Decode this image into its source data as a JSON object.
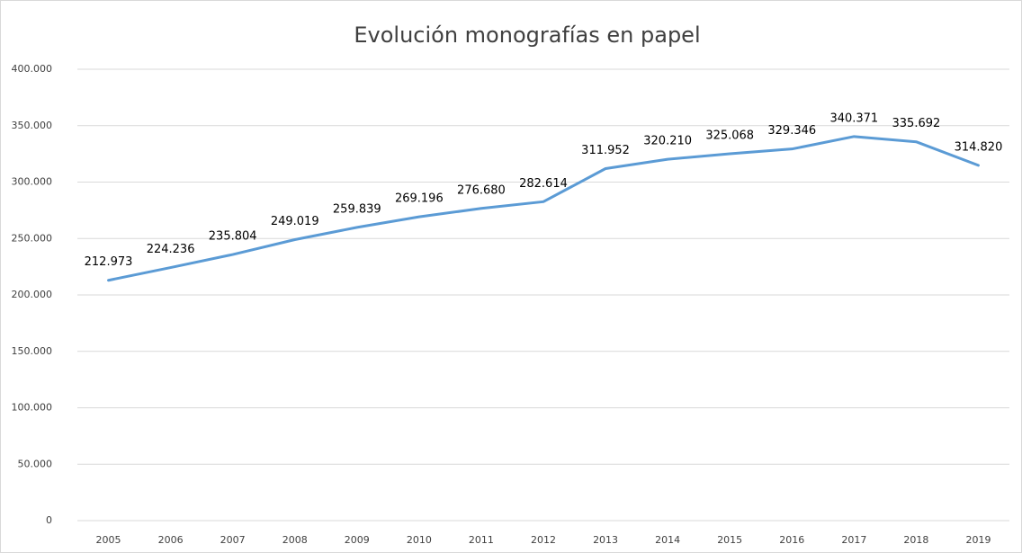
{
  "chart_data": {
    "type": "line",
    "title": "Evolución monografías en papel",
    "categories": [
      "2005",
      "2006",
      "2007",
      "2008",
      "2009",
      "2010",
      "2011",
      "2012",
      "2013",
      "2014",
      "2015",
      "2016",
      "2017",
      "2018",
      "2019"
    ],
    "series": [
      {
        "name": "Monografías en papel",
        "color": "#5b9bd5",
        "values": [
          212973,
          224236,
          235804,
          249019,
          259839,
          269196,
          276680,
          282614,
          311952,
          320210,
          325068,
          329346,
          340371,
          335692,
          314820
        ],
        "value_labels": [
          "212.973",
          "224.236",
          "235.804",
          "249.019",
          "259.839",
          "269.196",
          "276.680",
          "282.614",
          "311.952",
          "320.210",
          "325.068",
          "329.346",
          "340.371",
          "335.692",
          "314.820"
        ]
      }
    ],
    "ylim": [
      0,
      400000
    ],
    "yticks": [
      0,
      {
        "value": 50000,
        "label": "50.000"
      },
      {
        "value": 100000,
        "label": "100.000"
      },
      {
        "value": 150000,
        "label": "150.000"
      },
      {
        "value": 200000,
        "label": "200.000"
      },
      {
        "value": 250000,
        "label": "250.000"
      },
      {
        "value": 300000,
        "label": "300.000"
      },
      {
        "value": 350000,
        "label": "350.000"
      },
      {
        "value": 400000,
        "label": "400.000"
      }
    ],
    "grid": true
  }
}
